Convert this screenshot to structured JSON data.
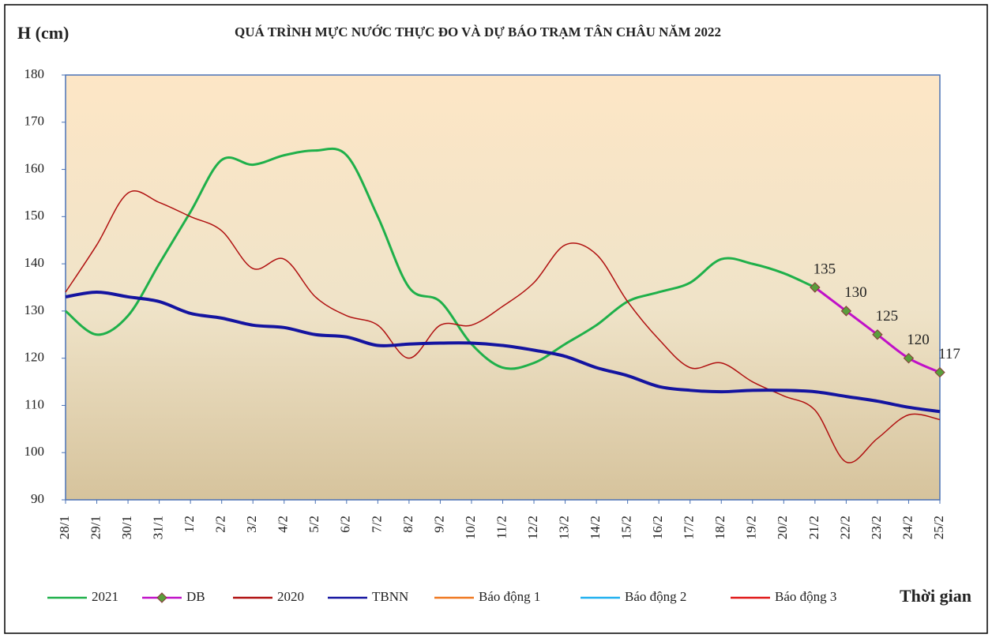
{
  "chart_data": {
    "type": "line",
    "title": "QUÁ TRÌNH MỰC NƯỚC THỰC ĐO VÀ DỰ BÁO TRẠM TÂN CHÂU NĂM 2022",
    "y_label": "H (cm)",
    "x_label": "Thời gian",
    "categories": [
      "28/1",
      "29/1",
      "30/1",
      "31/1",
      "1/2",
      "2/2",
      "3/2",
      "4/2",
      "5/2",
      "6/2",
      "7/2",
      "8/2",
      "9/2",
      "10/2",
      "11/2",
      "12/2",
      "13/2",
      "14/2",
      "15/2",
      "16/2",
      "17/2",
      "18/2",
      "19/2",
      "20/2",
      "21/2",
      "22/2",
      "23/2",
      "24/2",
      "25/2"
    ],
    "ylim": [
      90,
      180
    ],
    "yticks": [
      90,
      100,
      110,
      120,
      130,
      140,
      150,
      160,
      170,
      180
    ],
    "series": [
      {
        "name": "2021",
        "color": "#1fb04a",
        "values": [
          130,
          125,
          129,
          140,
          151,
          162,
          161,
          163,
          164,
          163,
          150,
          135,
          132,
          123,
          118,
          119,
          123,
          127,
          132,
          134,
          136,
          141,
          140,
          138,
          135,
          null,
          null,
          null,
          null
        ]
      },
      {
        "name": "DB",
        "color": "#c010c8",
        "marker": "diamond",
        "marker_color": "#5a9e3c",
        "values": [
          null,
          null,
          null,
          null,
          null,
          null,
          null,
          null,
          null,
          null,
          null,
          null,
          null,
          null,
          null,
          null,
          null,
          null,
          null,
          null,
          null,
          null,
          null,
          null,
          135,
          130,
          125,
          120,
          117
        ]
      },
      {
        "name": "2020",
        "color": "#b01010",
        "values": [
          134,
          144,
          155,
          153,
          150,
          147,
          139,
          141,
          133,
          129,
          127,
          120,
          127,
          127,
          131,
          136,
          144,
          142,
          132,
          124,
          118,
          119,
          115,
          112,
          109,
          98,
          103,
          108,
          107
        ]
      },
      {
        "name": "TBNN",
        "color": "#1414a0",
        "values": [
          133,
          134,
          133,
          132,
          129.5,
          128.5,
          127,
          126.5,
          125,
          124.5,
          122.7,
          123,
          123.2,
          123.2,
          122.7,
          121.7,
          120.4,
          118,
          116.3,
          114,
          113.2,
          112.9,
          113.2,
          113.2,
          112.9,
          111.9,
          110.9,
          109.6,
          108.7
        ]
      },
      {
        "name": "Báo động 1",
        "color": "#f07820",
        "values": [
          null,
          null,
          null,
          null,
          null,
          null,
          null,
          null,
          null,
          null,
          null,
          null,
          null,
          null,
          null,
          null,
          null,
          null,
          null,
          null,
          null,
          null,
          null,
          null,
          null,
          null,
          null,
          null,
          null
        ]
      },
      {
        "name": "Báo động 2",
        "color": "#20b0f0",
        "values": [
          null,
          null,
          null,
          null,
          null,
          null,
          null,
          null,
          null,
          null,
          null,
          null,
          null,
          null,
          null,
          null,
          null,
          null,
          null,
          null,
          null,
          null,
          null,
          null,
          null,
          null,
          null,
          null,
          null
        ]
      },
      {
        "name": "Báo động 3",
        "color": "#e01818",
        "values": [
          null,
          null,
          null,
          null,
          null,
          null,
          null,
          null,
          null,
          null,
          null,
          null,
          null,
          null,
          null,
          null,
          null,
          null,
          null,
          null,
          null,
          null,
          null,
          null,
          null,
          null,
          null,
          null,
          null
        ]
      }
    ]
  }
}
